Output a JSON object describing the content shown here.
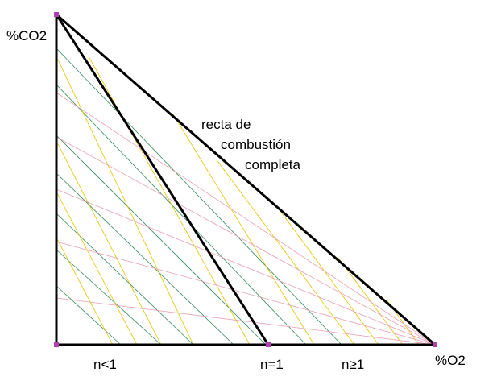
{
  "labels": {
    "y_axis": "%CO2",
    "x_axis": "%O2",
    "curve_line1": "recta de",
    "curve_line2": "combustión",
    "curve_line3": "completa",
    "n_less": "n<1",
    "n_equal": "n=1",
    "n_greater": "n≥1"
  },
  "colors": {
    "frame": "#000000",
    "green_lines": "#2e8b57",
    "yellow_lines": "#e6c200",
    "pink_lines": "#e8a0b4",
    "corner_marker": "#b040b0"
  }
}
